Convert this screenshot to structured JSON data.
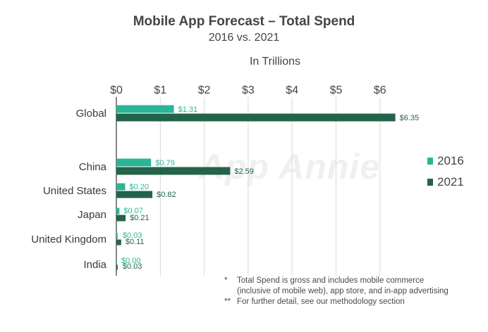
{
  "title": "Mobile App Forecast – Total Spend",
  "subtitle": "2016 vs. 2021",
  "unit_label": "In Trillions",
  "watermark": "App Annie",
  "colors": {
    "s2016": "#2bb597",
    "s2021": "#23634a",
    "grid": "#d9d9d9",
    "label2016": "#2bb597",
    "label2021": "#23634a"
  },
  "chart_data": {
    "type": "bar",
    "orientation": "horizontal",
    "categories": [
      "Global",
      "China",
      "United States",
      "Japan",
      "United Kingdom",
      "India"
    ],
    "series": [
      {
        "name": "2016",
        "values": [
          1.31,
          0.79,
          0.2,
          0.07,
          0.03,
          0.0
        ],
        "labels": [
          "$1.31",
          "$0.79",
          "$0.20",
          "$0.07",
          "$0.03",
          "$0.00"
        ]
      },
      {
        "name": "2021",
        "values": [
          6.35,
          2.59,
          0.82,
          0.21,
          0.11,
          0.03
        ],
        "labels": [
          "$6.35",
          "$2.59",
          "$0.82",
          "$0.21",
          "$0.11",
          "$0.03"
        ]
      }
    ],
    "xlim": [
      0,
      6.5
    ],
    "xticks": [
      0,
      1,
      2,
      3,
      4,
      5,
      6
    ],
    "xtick_labels": [
      "$0",
      "$1",
      "$2",
      "$3",
      "$4",
      "$5",
      "$6"
    ],
    "grid": true,
    "legend_position": "right"
  },
  "notes": [
    {
      "mark": "*",
      "text": "Total Spend is gross and includes mobile commerce"
    },
    {
      "mark": "",
      "text": "(inclusive of mobile web), app store, and in-app advertising"
    },
    {
      "mark": "**",
      "text": "For further detail, see our methodology section"
    }
  ]
}
